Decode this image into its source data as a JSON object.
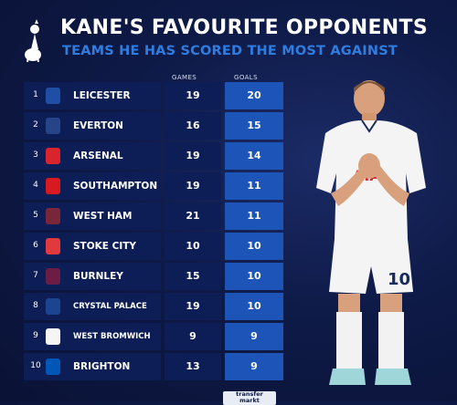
{
  "header": {
    "title": "KANE'S FAVOURITE OPPONENTS",
    "subtitle": "TEAMS HE HAS SCORED THE MOST AGAINST"
  },
  "columns": {
    "games": "GAMES",
    "goals": "GOALS"
  },
  "rows": [
    {
      "rank": "1",
      "team": "LEICESTER",
      "games": "19",
      "goals": "20",
      "crest": "leicester-crest-icon",
      "color": "#1f4fa5"
    },
    {
      "rank": "2",
      "team": "EVERTON",
      "games": "16",
      "goals": "15",
      "crest": "everton-crest-icon",
      "color": "#274488"
    },
    {
      "rank": "3",
      "team": "ARSENAL",
      "games": "19",
      "goals": "14",
      "crest": "arsenal-crest-icon",
      "color": "#d9232d"
    },
    {
      "rank": "4",
      "team": "SOUTHAMPTON",
      "games": "19",
      "goals": "11",
      "crest": "southampton-crest-icon",
      "color": "#d71920"
    },
    {
      "rank": "5",
      "team": "WEST HAM",
      "games": "21",
      "goals": "11",
      "crest": "west-ham-crest-icon",
      "color": "#7a263a"
    },
    {
      "rank": "6",
      "team": "STOKE CITY",
      "games": "10",
      "goals": "10",
      "crest": "stoke-crest-icon",
      "color": "#e03a3e"
    },
    {
      "rank": "7",
      "team": "BURNLEY",
      "games": "15",
      "goals": "10",
      "crest": "burnley-crest-icon",
      "color": "#6c1d45"
    },
    {
      "rank": "8",
      "team": "CRYSTAL PALACE",
      "games": "19",
      "goals": "10",
      "crest": "crystal-palace-crest-icon",
      "color": "#1b458f"
    },
    {
      "rank": "9",
      "team": "WEST BROMWICH",
      "games": "9",
      "goals": "9",
      "crest": "west-brom-crest-icon",
      "color": "#f5f5f5"
    },
    {
      "rank": "10",
      "team": "BRIGHTON",
      "games": "13",
      "goals": "9",
      "crest": "brighton-crest-icon",
      "color": "#0057b8"
    }
  ],
  "footer": {
    "logo_line1": "transfer",
    "logo_line2": "markt"
  },
  "player": {
    "shirt_number": "10",
    "sponsor": "AIA"
  }
}
